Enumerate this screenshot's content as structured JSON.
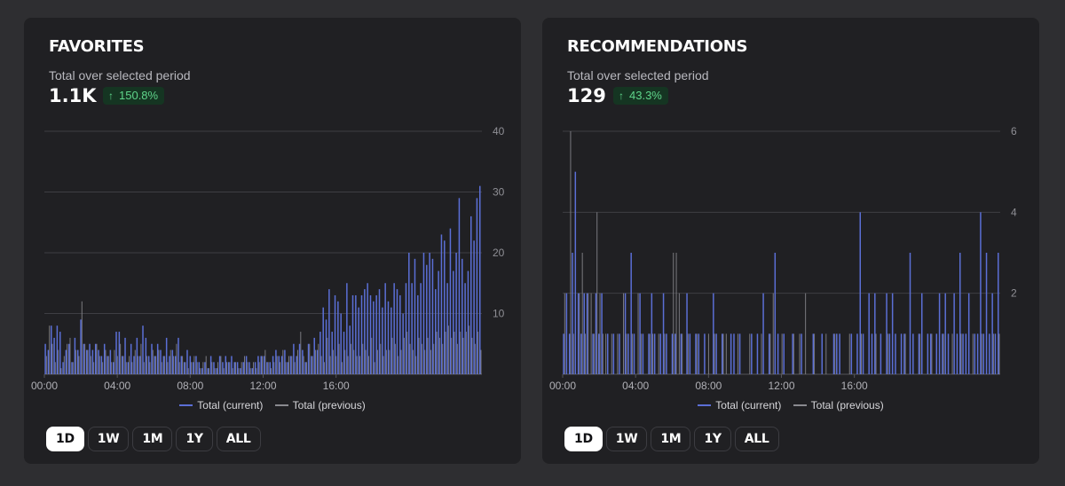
{
  "cards": [
    {
      "title": "FAVORITES",
      "subtitle": "Total over selected period",
      "value": "1.1K",
      "change": "150.8%",
      "change_icon": "arrow-up-icon",
      "range_buttons": [
        "1D",
        "1W",
        "1M",
        "1Y",
        "ALL"
      ],
      "active_range": "1D"
    },
    {
      "title": "RECOMMENDATIONS",
      "subtitle": "Total over selected period",
      "value": "129",
      "change": "43.3%",
      "change_icon": "arrow-up-icon",
      "range_buttons": [
        "1D",
        "1W",
        "1M",
        "1Y",
        "ALL"
      ],
      "active_range": "1D"
    }
  ],
  "colors": {
    "current": "#5b6fd6",
    "previous": "#8a8a8f",
    "grid": "#3e3e43",
    "badge_text": "#5fd48a"
  },
  "chart_data": [
    {
      "type": "bar",
      "title": "FAVORITES",
      "xlabel": "",
      "ylabel": "",
      "x_ticks": [
        "00:00",
        "04:00",
        "08:00",
        "12:00",
        "16:00"
      ],
      "y_ticks": [
        "10",
        "20",
        "30",
        "40"
      ],
      "ylim": [
        0,
        40
      ],
      "legend": [
        "Total (current)",
        "Total (previous)"
      ],
      "legend_position": "bottom",
      "series": [
        {
          "name": "Total (current)",
          "values": [
            5,
            4,
            8,
            6,
            8,
            7,
            2,
            4,
            5,
            2,
            6,
            4,
            9,
            5,
            4,
            5,
            4,
            5,
            4,
            3,
            5,
            3,
            4,
            2,
            7,
            7,
            3,
            6,
            2,
            5,
            3,
            6,
            3,
            8,
            6,
            3,
            5,
            3,
            5,
            4,
            3,
            6,
            3,
            4,
            3,
            6,
            3,
            2,
            4,
            3,
            2,
            3,
            2,
            1,
            2,
            1,
            3,
            2,
            1,
            3,
            2,
            3,
            2,
            3,
            2,
            2,
            1,
            2,
            3,
            2,
            1,
            2,
            3,
            3,
            3,
            2,
            2,
            3,
            4,
            3,
            3,
            4,
            2,
            3,
            5,
            3,
            5,
            4,
            2,
            5,
            3,
            6,
            4,
            7,
            11,
            9,
            14,
            7,
            13,
            12,
            10,
            7,
            15,
            8,
            13,
            13,
            11,
            13,
            14,
            15,
            13,
            12,
            13,
            14,
            11,
            15,
            12,
            11,
            15,
            14,
            13,
            10,
            15,
            20,
            15,
            19,
            13,
            15,
            20,
            18,
            20,
            19,
            14,
            17,
            23,
            22,
            15,
            24,
            17,
            20,
            29,
            19,
            15,
            17,
            26,
            22,
            29,
            31
          ]
        },
        {
          "name": "Total (previous)",
          "values": [
            3,
            8,
            5,
            2,
            4,
            1,
            3,
            5,
            6,
            2,
            4,
            3,
            12,
            5,
            4,
            3,
            2,
            5,
            3,
            2,
            4,
            3,
            2,
            4,
            3,
            5,
            3,
            2,
            3,
            2,
            4,
            3,
            5,
            2,
            3,
            2,
            4,
            3,
            4,
            2,
            3,
            2,
            4,
            3,
            5,
            2,
            3,
            2,
            1,
            2,
            3,
            2,
            1,
            2,
            3,
            1,
            2,
            1,
            2,
            3,
            1,
            2,
            2,
            1,
            2,
            1,
            2,
            3,
            2,
            1,
            2,
            1,
            2,
            3,
            4,
            2,
            1,
            2,
            3,
            2,
            4,
            2,
            3,
            3,
            2,
            4,
            7,
            3,
            2,
            5,
            3,
            4,
            5,
            3,
            2,
            6,
            3,
            4,
            3,
            5,
            2,
            4,
            3,
            5,
            4,
            3,
            3,
            5,
            4,
            3,
            6,
            2,
            4,
            5,
            3,
            4,
            4,
            6,
            5,
            3,
            4,
            6,
            7,
            5,
            4,
            3,
            6,
            5,
            4,
            6,
            4,
            5,
            7,
            6,
            5,
            7,
            8,
            6,
            7,
            5,
            7,
            6,
            7,
            8,
            6,
            5,
            7,
            4
          ]
        }
      ]
    },
    {
      "type": "bar",
      "title": "RECOMMENDATIONS",
      "xlabel": "",
      "ylabel": "",
      "x_ticks": [
        "00:00",
        "04:00",
        "08:00",
        "12:00",
        "16:00"
      ],
      "y_ticks": [
        "2",
        "4",
        "6"
      ],
      "ylim": [
        0,
        6
      ],
      "legend": [
        "Total (current)",
        "Total (previous)"
      ],
      "legend_position": "bottom",
      "series": [
        {
          "name": "Total (current)",
          "values": [
            1,
            2,
            1,
            3,
            5,
            2,
            1,
            2,
            2,
            0,
            1,
            2,
            1,
            2,
            0,
            1,
            0,
            1,
            0,
            1,
            0,
            2,
            1,
            3,
            1,
            0,
            2,
            1,
            0,
            1,
            2,
            1,
            0,
            1,
            2,
            1,
            0,
            1,
            1,
            0,
            1,
            0,
            2,
            1,
            0,
            1,
            1,
            0,
            1,
            0,
            0,
            2,
            1,
            0,
            1,
            0,
            0,
            1,
            1,
            0,
            1,
            0,
            0,
            0,
            1,
            0,
            1,
            0,
            2,
            0,
            1,
            0,
            3,
            1,
            0,
            1,
            0,
            0,
            1,
            0,
            0,
            1,
            0,
            0,
            0,
            1,
            0,
            0,
            1,
            0,
            0,
            0,
            1,
            1,
            1,
            0,
            0,
            0,
            1,
            0,
            1,
            4,
            1,
            0,
            2,
            1,
            2,
            0,
            1,
            0,
            2,
            1,
            2,
            1,
            0,
            1,
            1,
            0,
            3,
            1,
            0,
            1,
            2,
            0,
            1,
            1,
            0,
            1,
            2,
            1,
            2,
            1,
            0,
            2,
            1,
            3,
            1,
            1,
            2,
            0,
            1,
            1,
            4,
            1,
            3,
            1,
            2,
            1,
            3
          ]
        },
        {
          "name": "Total (previous)",
          "values": [
            2,
            0,
            6,
            1,
            0,
            2,
            3,
            1,
            2,
            2,
            1,
            4,
            2,
            1,
            1,
            0,
            1,
            0,
            1,
            0,
            2,
            1,
            0,
            1,
            0,
            2,
            1,
            0,
            0,
            1,
            1,
            0,
            1,
            0,
            1,
            0,
            0,
            3,
            3,
            2,
            1,
            0,
            1,
            0,
            0,
            1,
            0,
            0,
            0,
            1,
            0,
            1,
            0,
            0,
            1,
            1,
            0,
            0,
            0,
            1,
            0,
            0,
            0,
            1,
            0,
            0,
            0,
            1,
            0,
            0,
            1,
            2,
            0,
            0,
            1,
            0,
            0,
            0,
            1,
            0,
            1,
            0,
            2,
            0,
            0,
            1,
            0,
            0,
            0,
            1,
            0,
            0,
            1,
            0,
            0,
            0,
            0,
            1,
            0,
            0,
            0,
            1,
            0,
            0,
            0,
            0,
            1,
            0,
            0,
            0,
            1,
            0,
            0,
            0,
            0,
            0,
            1,
            0,
            0,
            0,
            0,
            1,
            0,
            0,
            0,
            1,
            0,
            0,
            0,
            1,
            0,
            0,
            1,
            0,
            0,
            1,
            0,
            0,
            0,
            1,
            0,
            0,
            1,
            0,
            0,
            0,
            1,
            0,
            1
          ]
        }
      ]
    }
  ]
}
